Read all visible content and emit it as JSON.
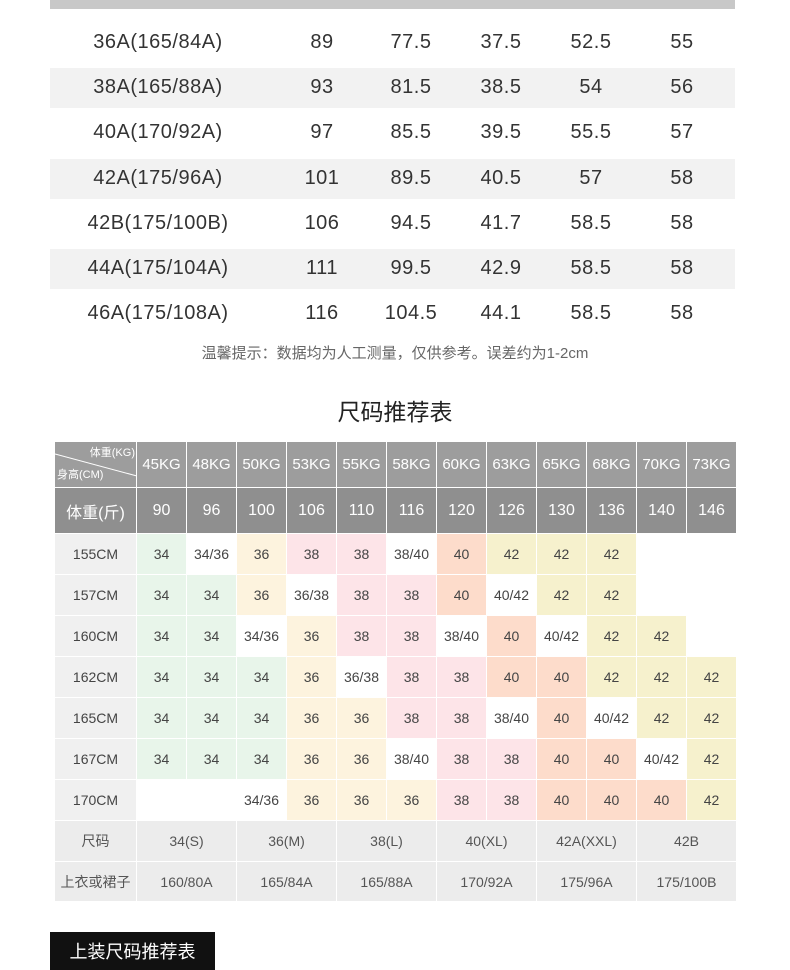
{
  "size_table": {
    "rows": [
      [
        "36A(165/84A)",
        89,
        77.5,
        37.5,
        52.5,
        55
      ],
      [
        "38A(165/88A)",
        93,
        81.5,
        38.5,
        54,
        56
      ],
      [
        "40A(170/92A)",
        97,
        85.5,
        39.5,
        55.5,
        57
      ],
      [
        "42A(175/96A)",
        101,
        89.5,
        40.5,
        57,
        58
      ],
      [
        "42B(175/100B)",
        106,
        94.5,
        41.7,
        58.5,
        58
      ],
      [
        "44A(175/104A)",
        111,
        99.5,
        42.9,
        58.5,
        58
      ],
      [
        "46A(175/108A)",
        116,
        104.5,
        44.1,
        58.5,
        58
      ]
    ]
  },
  "note": "温馨提示：数据均为人工测量，仅供参考。误差约为1-2cm",
  "recommend": {
    "title": "尺码推荐表",
    "corner_top": "体重(KG)",
    "corner_bottom": "身高(CM)",
    "kg": [
      "45KG",
      "48KG",
      "50KG",
      "53KG",
      "55KG",
      "58KG",
      "60KG",
      "63KG",
      "65KG",
      "68KG",
      "70KG",
      "73KG"
    ],
    "jin_label": "体重(斤)",
    "jin": [
      90,
      96,
      100,
      106,
      110,
      116,
      120,
      126,
      130,
      136,
      140,
      146
    ],
    "heights": [
      "155CM",
      "157CM",
      "160CM",
      "162CM",
      "165CM",
      "167CM",
      "170CM"
    ],
    "cells": [
      [
        34,
        "34/36",
        36,
        38,
        38,
        "38/40",
        40,
        42,
        42,
        42,
        null,
        null
      ],
      [
        34,
        34,
        36,
        "36/38",
        38,
        38,
        40,
        "40/42",
        42,
        42,
        null,
        null
      ],
      [
        34,
        34,
        "34/36",
        36,
        38,
        38,
        "38/40",
        40,
        "40/42",
        42,
        42,
        null
      ],
      [
        34,
        34,
        34,
        36,
        "36/38",
        38,
        38,
        40,
        40,
        42,
        42,
        42
      ],
      [
        34,
        34,
        34,
        36,
        36,
        38,
        38,
        "38/40",
        40,
        "40/42",
        42,
        42
      ],
      [
        34,
        34,
        34,
        36,
        36,
        "38/40",
        38,
        38,
        40,
        40,
        "40/42",
        42
      ],
      [
        null,
        null,
        "34/36",
        36,
        36,
        36,
        38,
        38,
        40,
        40,
        40,
        42
      ]
    ],
    "colors": {
      "34": "#e8f5ea",
      "36": "#fdf3de",
      "38": "#fde4e8",
      "40": "#fddccb",
      "42": "#f6f1cd"
    },
    "size_label": "尺码",
    "sizes": [
      "34(S)",
      "36(M)",
      "38(L)",
      "40(XL)",
      "42A(XXL)",
      "42B"
    ],
    "top_label": "上衣或裙子",
    "tops": [
      "160/80A",
      "165/84A",
      "165/88A",
      "170/92A",
      "175/96A",
      "175/100B"
    ]
  },
  "footer_tab": "上装尺码推荐表"
}
